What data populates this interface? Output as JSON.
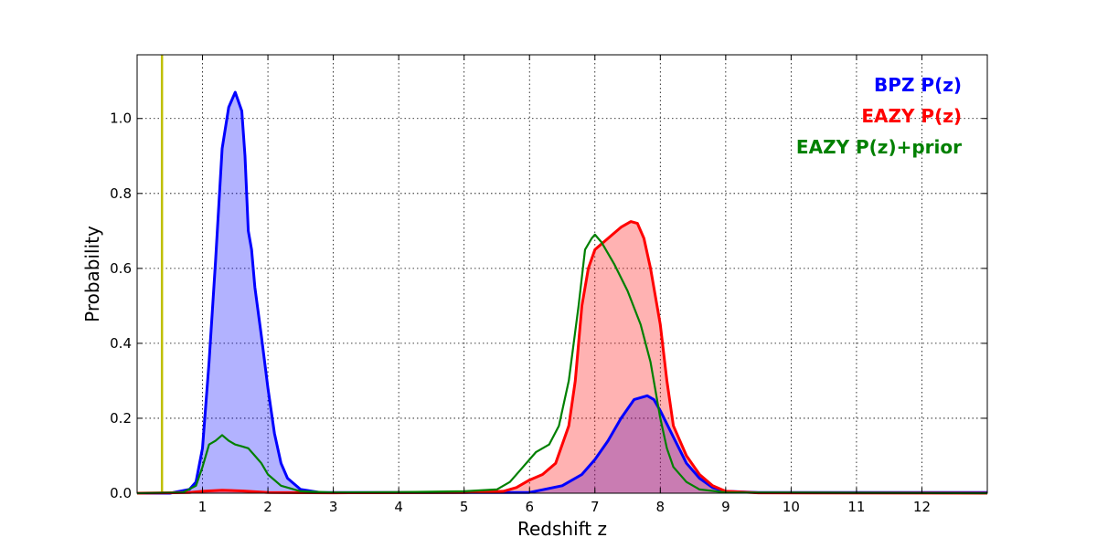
{
  "chart_data": {
    "type": "area",
    "xlabel": "Redshift z",
    "ylabel": "Probability",
    "xlim": [
      0,
      13
    ],
    "ylim": [
      0,
      1.17
    ],
    "x_ticks": [
      1,
      2,
      3,
      4,
      5,
      6,
      7,
      8,
      9,
      10,
      11,
      12
    ],
    "y_ticks": [
      0.0,
      0.2,
      0.4,
      0.6,
      0.8,
      1.0
    ],
    "x_tick_labels": [
      "1",
      "2",
      "3",
      "4",
      "5",
      "6",
      "7",
      "8",
      "9",
      "10",
      "11",
      "12"
    ],
    "y_tick_labels": [
      "0.0",
      "0.2",
      "0.4",
      "0.6",
      "0.8",
      "1.0"
    ],
    "grid": true,
    "legend_position": "top-right",
    "vline": {
      "x": 0.38,
      "color": "#bfbf00"
    },
    "series": [
      {
        "name": "BPZ P(z)",
        "color": "#0000ff",
        "filled": true,
        "points": [
          [
            0,
            0
          ],
          [
            0.5,
            0
          ],
          [
            0.8,
            0.01
          ],
          [
            0.9,
            0.03
          ],
          [
            1.0,
            0.12
          ],
          [
            1.1,
            0.35
          ],
          [
            1.2,
            0.62
          ],
          [
            1.3,
            0.92
          ],
          [
            1.4,
            1.03
          ],
          [
            1.5,
            1.07
          ],
          [
            1.6,
            1.02
          ],
          [
            1.65,
            0.9
          ],
          [
            1.7,
            0.7
          ],
          [
            1.75,
            0.65
          ],
          [
            1.8,
            0.55
          ],
          [
            1.9,
            0.42
          ],
          [
            2.0,
            0.28
          ],
          [
            2.1,
            0.16
          ],
          [
            2.2,
            0.08
          ],
          [
            2.3,
            0.04
          ],
          [
            2.5,
            0.01
          ],
          [
            2.8,
            0.002
          ],
          [
            6.0,
            0.002
          ],
          [
            6.5,
            0.02
          ],
          [
            6.8,
            0.05
          ],
          [
            7.0,
            0.09
          ],
          [
            7.2,
            0.14
          ],
          [
            7.4,
            0.2
          ],
          [
            7.6,
            0.25
          ],
          [
            7.8,
            0.26
          ],
          [
            7.9,
            0.25
          ],
          [
            8.0,
            0.22
          ],
          [
            8.2,
            0.15
          ],
          [
            8.4,
            0.08
          ],
          [
            8.6,
            0.04
          ],
          [
            8.8,
            0.015
          ],
          [
            9.0,
            0.005
          ],
          [
            9.5,
            0.002
          ],
          [
            13,
            0.002
          ]
        ]
      },
      {
        "name": "EAZY P(z)",
        "color": "#ff0000",
        "filled": true,
        "points": [
          [
            0,
            0
          ],
          [
            0.8,
            0.002
          ],
          [
            1.0,
            0.005
          ],
          [
            1.3,
            0.008
          ],
          [
            1.6,
            0.006
          ],
          [
            2.0,
            0.002
          ],
          [
            3.0,
            0.001
          ],
          [
            5.0,
            0.002
          ],
          [
            5.6,
            0.005
          ],
          [
            5.8,
            0.015
          ],
          [
            6.0,
            0.035
          ],
          [
            6.2,
            0.05
          ],
          [
            6.4,
            0.08
          ],
          [
            6.6,
            0.18
          ],
          [
            6.7,
            0.3
          ],
          [
            6.8,
            0.5
          ],
          [
            6.9,
            0.6
          ],
          [
            7.0,
            0.65
          ],
          [
            7.2,
            0.68
          ],
          [
            7.4,
            0.71
          ],
          [
            7.55,
            0.725
          ],
          [
            7.65,
            0.72
          ],
          [
            7.75,
            0.68
          ],
          [
            7.85,
            0.6
          ],
          [
            8.0,
            0.45
          ],
          [
            8.1,
            0.3
          ],
          [
            8.2,
            0.18
          ],
          [
            8.4,
            0.1
          ],
          [
            8.6,
            0.05
          ],
          [
            8.8,
            0.02
          ],
          [
            9.0,
            0.005
          ],
          [
            9.5,
            0.001
          ],
          [
            13,
            0.0
          ]
        ]
      },
      {
        "name": "EAZY P(z)+prior",
        "color": "#008000",
        "filled": false,
        "points": [
          [
            0,
            0
          ],
          [
            0.7,
            0.002
          ],
          [
            0.9,
            0.02
          ],
          [
            1.0,
            0.07
          ],
          [
            1.1,
            0.13
          ],
          [
            1.2,
            0.14
          ],
          [
            1.3,
            0.155
          ],
          [
            1.4,
            0.14
          ],
          [
            1.5,
            0.13
          ],
          [
            1.6,
            0.125
          ],
          [
            1.7,
            0.12
          ],
          [
            1.8,
            0.1
          ],
          [
            1.9,
            0.08
          ],
          [
            2.0,
            0.05
          ],
          [
            2.2,
            0.02
          ],
          [
            2.5,
            0.005
          ],
          [
            3.0,
            0.002
          ],
          [
            4.0,
            0.003
          ],
          [
            5.0,
            0.005
          ],
          [
            5.5,
            0.01
          ],
          [
            5.7,
            0.03
          ],
          [
            5.9,
            0.07
          ],
          [
            6.1,
            0.11
          ],
          [
            6.3,
            0.13
          ],
          [
            6.45,
            0.18
          ],
          [
            6.6,
            0.3
          ],
          [
            6.75,
            0.5
          ],
          [
            6.85,
            0.65
          ],
          [
            6.95,
            0.68
          ],
          [
            7.0,
            0.69
          ],
          [
            7.1,
            0.67
          ],
          [
            7.3,
            0.61
          ],
          [
            7.5,
            0.54
          ],
          [
            7.7,
            0.45
          ],
          [
            7.85,
            0.35
          ],
          [
            8.0,
            0.2
          ],
          [
            8.1,
            0.12
          ],
          [
            8.2,
            0.07
          ],
          [
            8.4,
            0.03
          ],
          [
            8.6,
            0.01
          ],
          [
            9.0,
            0.002
          ],
          [
            13,
            0.0
          ]
        ]
      }
    ]
  }
}
